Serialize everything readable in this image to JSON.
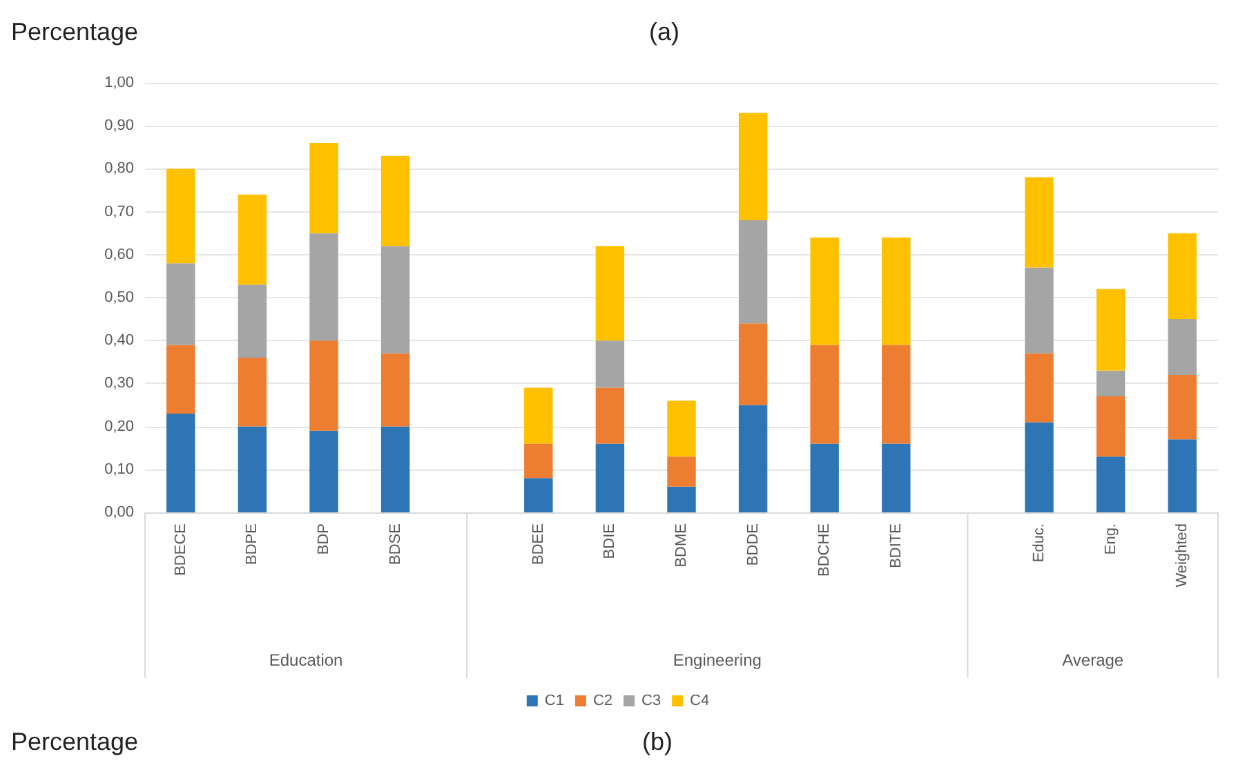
{
  "chart_data": {
    "type": "bar",
    "stacked": true,
    "title": "(a)",
    "ylabel": "Percentage",
    "categories": [
      "BDECE",
      "BDPE",
      "BDP",
      "BDSE",
      null,
      "BDEE",
      "BDIE",
      "BDME",
      "BDDE",
      "BDCHE",
      "BDITE",
      null,
      "Educ.",
      "Eng.",
      "Weighted"
    ],
    "series": [
      {
        "name": "C1",
        "color": "#2e75b6",
        "values": [
          0.23,
          0.2,
          0.19,
          0.2,
          null,
          0.08,
          0.16,
          0.06,
          0.25,
          0.16,
          0.16,
          null,
          0.21,
          0.13,
          0.17
        ]
      },
      {
        "name": "C2",
        "color": "#ed7d31",
        "values": [
          0.16,
          0.16,
          0.21,
          0.17,
          null,
          0.08,
          0.13,
          0.07,
          0.19,
          0.23,
          0.23,
          null,
          0.16,
          0.14,
          0.15
        ]
      },
      {
        "name": "C3",
        "color": "#a5a5a5",
        "values": [
          0.19,
          0.17,
          0.25,
          0.25,
          null,
          0,
          0.11,
          0,
          0.24,
          0,
          0,
          null,
          0.2,
          0.06,
          0.13
        ]
      },
      {
        "name": "C4",
        "color": "#ffc000",
        "values": [
          0.22,
          0.21,
          0.21,
          0.21,
          null,
          0.13,
          0.22,
          0.13,
          0.25,
          0.25,
          0.25,
          null,
          0.21,
          0.19,
          0.2
        ]
      }
    ],
    "ylim": [
      0,
      1
    ],
    "yticks": [
      {
        "value": 0,
        "label": "0,00"
      },
      {
        "value": 0.1,
        "label": "0,10"
      },
      {
        "value": 0.2,
        "label": "0,20"
      },
      {
        "value": 0.3,
        "label": "0,30"
      },
      {
        "value": 0.4,
        "label": "0,40"
      },
      {
        "value": 0.5,
        "label": "0,50"
      },
      {
        "value": 0.6,
        "label": "0,60"
      },
      {
        "value": 0.7,
        "label": "0,70"
      },
      {
        "value": 0.8,
        "label": "0,80"
      },
      {
        "value": 0.9,
        "label": "0,90"
      },
      {
        "value": 1,
        "label": "1,00"
      }
    ],
    "grid": "y",
    "legend": "bottom",
    "annotations": [
      "Education",
      "Engineering",
      "Average",
      "Percentage",
      "(b)"
    ]
  }
}
